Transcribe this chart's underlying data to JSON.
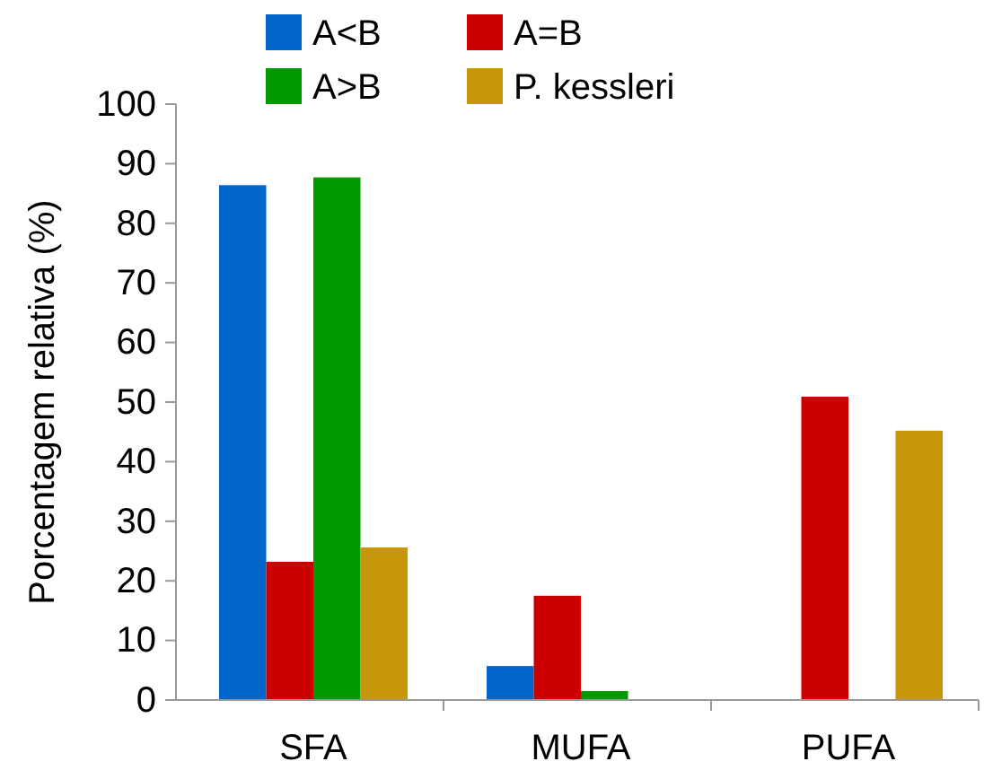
{
  "chart_data": {
    "type": "bar",
    "ylabel": "Porcentagem relativa (%)",
    "categories": [
      "SFA",
      "MUFA",
      "PUFA"
    ],
    "series": [
      {
        "name": "A<B",
        "color": "#0066cc",
        "values": [
          86.4,
          5.7,
          0
        ]
      },
      {
        "name": "A=B",
        "color": "#cc0000",
        "values": [
          23.2,
          17.5,
          50.9
        ]
      },
      {
        "name": "A>B",
        "color": "#009900",
        "values": [
          87.7,
          1.5,
          0
        ]
      },
      {
        "name": "P. kessleri",
        "color": "#c8960a",
        "values": [
          25.6,
          0,
          45.2
        ]
      }
    ],
    "ylim": [
      0,
      100
    ],
    "yticks": [
      0,
      10,
      20,
      30,
      40,
      50,
      60,
      70,
      80,
      90,
      100
    ],
    "grid": false,
    "legend": "top"
  }
}
